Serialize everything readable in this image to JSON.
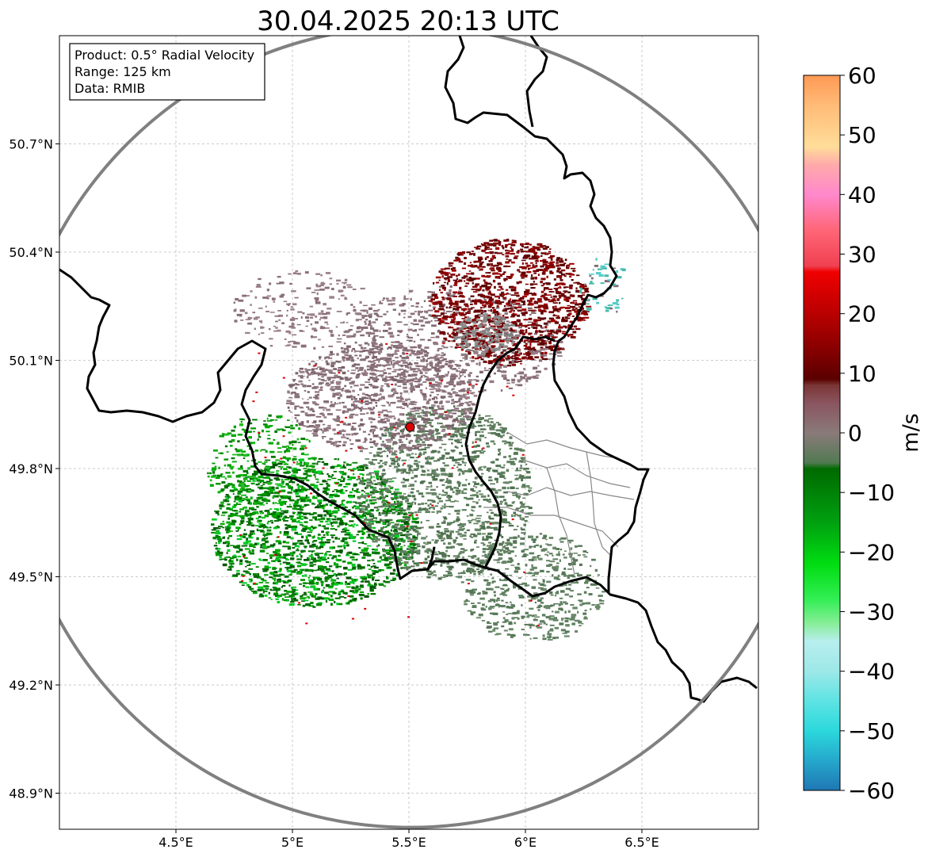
{
  "title": "30.04.2025 20:13 UTC",
  "info_box": {
    "product": "Product: 0.5° Radial Velocity",
    "range": "Range: 125 km",
    "data": "Data: RMIB"
  },
  "map": {
    "lon_range": [
      4.0,
      7.0
    ],
    "lat_range": [
      48.8,
      51.0
    ],
    "lat_ticks": [
      {
        "value": 50.7,
        "label": "50.7°N"
      },
      {
        "value": 50.4,
        "label": "50.4°N"
      },
      {
        "value": 50.1,
        "label": "50.1°N"
      },
      {
        "value": 49.8,
        "label": "49.8°N"
      },
      {
        "value": 49.5,
        "label": "49.5°N"
      },
      {
        "value": 49.2,
        "label": "49.2°N"
      },
      {
        "value": 48.9,
        "label": "48.9°N"
      }
    ],
    "lon_ticks": [
      {
        "value": 4.5,
        "label": "4.5°E"
      },
      {
        "value": 5.0,
        "label": "5°E"
      },
      {
        "value": 5.5,
        "label": "5.5°E"
      },
      {
        "value": 6.0,
        "label": "6°E"
      },
      {
        "value": 6.5,
        "label": "6.5°E"
      }
    ],
    "radar_site": {
      "lon": 5.505,
      "lat": 49.915
    },
    "radar_site_color": "#dd0000",
    "range_ring_color": "#808080"
  },
  "colorbar": {
    "label": "m/s",
    "min": -60,
    "max": 60,
    "ticks": [
      {
        "value": 60,
        "label": "60"
      },
      {
        "value": 50,
        "label": "50"
      },
      {
        "value": 40,
        "label": "40"
      },
      {
        "value": 30,
        "label": "30"
      },
      {
        "value": 20,
        "label": "20"
      },
      {
        "value": 10,
        "label": "10"
      },
      {
        "value": 0,
        "label": "0"
      },
      {
        "value": -10,
        "label": "−10"
      },
      {
        "value": -20,
        "label": "−20"
      },
      {
        "value": -30,
        "label": "−30"
      },
      {
        "value": -40,
        "label": "−40"
      },
      {
        "value": -50,
        "label": "−50"
      },
      {
        "value": -60,
        "label": "−60"
      }
    ],
    "stops": [
      {
        "value": -60,
        "color": "#1f77b4"
      },
      {
        "value": -55,
        "color": "#25a8cc"
      },
      {
        "value": -50,
        "color": "#2bd8dc"
      },
      {
        "value": -45,
        "color": "#5ee3e3"
      },
      {
        "value": -40,
        "color": "#9de8e8"
      },
      {
        "value": -35,
        "color": "#b8eeee"
      },
      {
        "value": -32,
        "color": "#88ee99"
      },
      {
        "value": -28,
        "color": "#33ee55"
      },
      {
        "value": -22,
        "color": "#00dd11"
      },
      {
        "value": -15,
        "color": "#00a010"
      },
      {
        "value": -6,
        "color": "#006a00"
      },
      {
        "value": -5,
        "color": "#527a52"
      },
      {
        "value": 0,
        "color": "#8a7a7a"
      },
      {
        "value": 5,
        "color": "#8a5560"
      },
      {
        "value": 8,
        "color": "#7a3535"
      },
      {
        "value": 9,
        "color": "#5a0000"
      },
      {
        "value": 18,
        "color": "#aa0000"
      },
      {
        "value": 27,
        "color": "#f00000"
      },
      {
        "value": 28,
        "color": "#f04050"
      },
      {
        "value": 34,
        "color": "#ff6677"
      },
      {
        "value": 40,
        "color": "#ff88cc"
      },
      {
        "value": 45,
        "color": "#ffaaaa"
      },
      {
        "value": 48,
        "color": "#ffdd99"
      },
      {
        "value": 55,
        "color": "#ffbb77"
      },
      {
        "value": 60,
        "color": "#ff9955"
      }
    ]
  }
}
